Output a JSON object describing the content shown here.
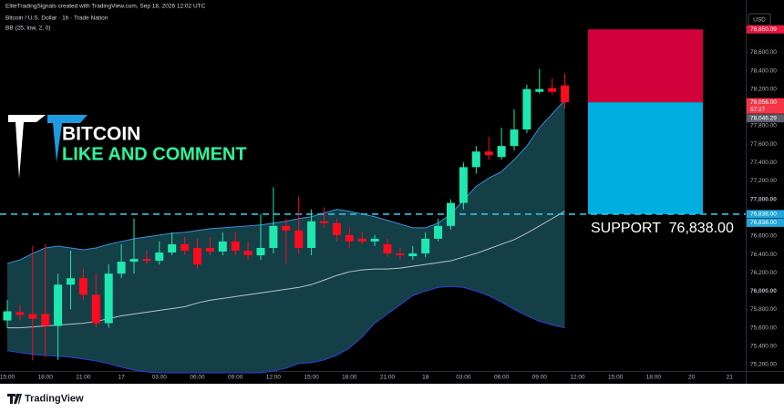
{
  "chart_data": {
    "type": "candlestick",
    "subtitle": "EliteTradingSignals created with TradingView.com, Sep 18, 2026 12:02 UTC",
    "title": "Bitcoin / U.S. Dollar · 1h · Trade Nation",
    "indicator": "BB (25, low, 2, 0)",
    "currency": "USD",
    "annotations": [
      "BITCOIN",
      "LIKE AND COMMENT",
      "SUPPORT  76,838.00"
    ],
    "watermark": "TradingView",
    "up_color": "#1ee8b0",
    "down_color": "#ff0a1e",
    "categories": [
      "15:00",
      null,
      null,
      "18:00",
      null,
      null,
      "21:00",
      null,
      null,
      "17",
      null,
      null,
      "03:00",
      null,
      null,
      "06:00",
      null,
      null,
      "09:00",
      null,
      null,
      "12:00",
      null,
      null,
      "15:00",
      null,
      null,
      "18:00",
      null,
      null,
      "21:00",
      null,
      null,
      "18",
      null,
      null,
      "03:00",
      null,
      null,
      "06:00",
      null,
      null,
      "09:00",
      null,
      null,
      "12:00",
      null,
      null,
      "15:00",
      null,
      null,
      "18:00",
      null,
      null,
      "20",
      null,
      null,
      "21"
    ],
    "open": [
      75680,
      75770,
      75750,
      75750,
      75620,
      76070,
      76140,
      75960,
      75650,
      76190,
      76320,
      76350,
      76330,
      76420,
      76510,
      76470,
      76470,
      76430,
      76540,
      76440,
      76390,
      76470,
      76710,
      76660,
      76470,
      76760,
      76740,
      76610,
      76570,
      76540,
      76510,
      76410,
      76380,
      76410,
      76570,
      76710,
      76960,
      77350,
      77520,
      77460,
      77580,
      77760,
      78170,
      78210,
      78240,
      null,
      null,
      null,
      null,
      null,
      null,
      null,
      null,
      null,
      null,
      null,
      null,
      null
    ],
    "high": [
      75900,
      75850,
      76490,
      76510,
      76190,
      76440,
      76240,
      76190,
      76290,
      76510,
      76790,
      76440,
      76540,
      76640,
      76590,
      76570,
      76590,
      76640,
      76640,
      76540,
      76840,
      77130,
      76790,
      77030,
      76890,
      76910,
      76790,
      76690,
      76640,
      76610,
      76570,
      76470,
      76490,
      76640,
      76790,
      77000,
      77400,
      77580,
      77680,
      77780,
      77980,
      78250,
      78420,
      78320,
      78370,
      null,
      null,
      null,
      null,
      null,
      null,
      null,
      null,
      null,
      null,
      null,
      null,
      null
    ],
    "low": [
      75600,
      75680,
      75250,
      75280,
      75250,
      75800,
      75900,
      75600,
      75600,
      76140,
      76190,
      76290,
      76290,
      76390,
      76390,
      76240,
      76390,
      76390,
      76390,
      76340,
      76340,
      76410,
      76290,
      76410,
      76390,
      76690,
      76540,
      76470,
      76510,
      76490,
      76370,
      76340,
      76340,
      76370,
      76540,
      76670,
      76890,
      77280,
      77430,
      77430,
      77530,
      77720,
      78150,
      78140,
      77990,
      null,
      null,
      null,
      null,
      null,
      null,
      null,
      null,
      null,
      null,
      null,
      null,
      null
    ],
    "close": [
      75780,
      75740,
      75700,
      75620,
      76070,
      76140,
      75960,
      75650,
      76190,
      76320,
      76350,
      76330,
      76420,
      76510,
      76440,
      76290,
      76430,
      76540,
      76440,
      76390,
      76470,
      76710,
      76660,
      76470,
      76760,
      76740,
      76610,
      76540,
      76540,
      76570,
      76410,
      76390,
      76410,
      76570,
      76710,
      76960,
      77350,
      77520,
      77480,
      77580,
      77760,
      78200,
      78200,
      78170,
      78056,
      null,
      null,
      null,
      null,
      null,
      null,
      null,
      null,
      null,
      null,
      null,
      null,
      null
    ],
    "bands": {
      "fill": "#143f47",
      "upper_color": "#3a8fd8",
      "middle_color": "#b8c4c6",
      "lower_color": "#2a3fd6",
      "upper": [
        76300,
        76340,
        76410,
        76470,
        76490,
        76470,
        76450,
        76470,
        76510,
        76540,
        76570,
        76590,
        76610,
        76630,
        76640,
        76660,
        76680,
        76690,
        76700,
        76710,
        76720,
        76740,
        76760,
        76790,
        76810,
        76850,
        76890,
        76870,
        76840,
        76810,
        76770,
        76730,
        76690,
        76690,
        76740,
        76840,
        76990,
        77140,
        77230,
        77300,
        77430,
        77580,
        77780,
        77930,
        78080,
        null,
        null,
        null,
        null,
        null,
        null,
        null,
        null,
        null,
        null,
        null,
        null,
        null
      ],
      "middle": [
        75600,
        75600,
        75610,
        75620,
        75630,
        75640,
        75650,
        75670,
        75700,
        75730,
        75750,
        75770,
        75790,
        75810,
        75830,
        75870,
        75900,
        75920,
        75940,
        75960,
        75980,
        76000,
        76020,
        76040,
        76070,
        76120,
        76170,
        76210,
        76230,
        76240,
        76240,
        76250,
        76270,
        76290,
        76310,
        76330,
        76370,
        76410,
        76460,
        76510,
        76560,
        76630,
        76710,
        76790,
        76870,
        null,
        null,
        null,
        null,
        null,
        null,
        null,
        null,
        null,
        null,
        null,
        null,
        null
      ],
      "lower": [
        75350,
        75330,
        75310,
        75300,
        75290,
        75280,
        75260,
        75240,
        75210,
        75170,
        75140,
        75120,
        75110,
        75110,
        75110,
        75110,
        75110,
        75110,
        75110,
        75110,
        75110,
        75130,
        75160,
        75210,
        75220,
        75250,
        75300,
        75380,
        75500,
        75650,
        75750,
        75850,
        75950,
        76000,
        76040,
        76050,
        76040,
        76000,
        75950,
        75880,
        75800,
        75730,
        75670,
        75630,
        75600,
        null,
        null,
        null,
        null,
        null,
        null,
        null,
        null,
        null,
        null,
        null,
        null,
        null
      ]
    },
    "position": {
      "stop": 78850.09,
      "entry": 78056,
      "target": 76838,
      "stop_color": "#d1003a",
      "target_color": "#00aee0"
    },
    "support_color": "#2ec4e6",
    "ylim": [
      75100,
      79170
    ],
    "yticks": [
      {
        "value": 78600,
        "label": "78,600.00"
      },
      {
        "value": 78400,
        "label": "78,400.00"
      },
      {
        "value": 78200,
        "label": "78,200.00"
      },
      {
        "value": 77800,
        "label": "77,800.00"
      },
      {
        "value": 77600,
        "label": "77,600.00"
      },
      {
        "value": 77400,
        "label": "77,400.00"
      },
      {
        "value": 77200,
        "label": "77,200.00"
      },
      {
        "value": 77000,
        "label": "77,000.00"
      },
      {
        "value": 76600,
        "label": "76,600.00"
      },
      {
        "value": 76400,
        "label": "76,400.00"
      },
      {
        "value": 76200,
        "label": "76,200.00"
      },
      {
        "value": 76000,
        "label": "76,000.00"
      },
      {
        "value": 75800,
        "label": "75,800.00"
      },
      {
        "value": 75600,
        "label": "75,600.00"
      },
      {
        "value": 75400,
        "label": "75,400.00"
      },
      {
        "value": 75200,
        "label": "75,200.00"
      }
    ],
    "price_labels": [
      {
        "value": 78850.09,
        "label": "78,850.09",
        "color": "#e8173f"
      },
      {
        "value": 78056,
        "label": "78,056.00",
        "sub": "57:27",
        "color": "#f23645"
      },
      {
        "value": 78046.29,
        "label": "78,046.29",
        "color": "#5d606b"
      },
      {
        "value": 76838,
        "label": "76,838.00",
        "color": "#23a6d9"
      },
      {
        "value": 76838,
        "label": "76,838.00",
        "color": "#23a6d9"
      }
    ]
  }
}
